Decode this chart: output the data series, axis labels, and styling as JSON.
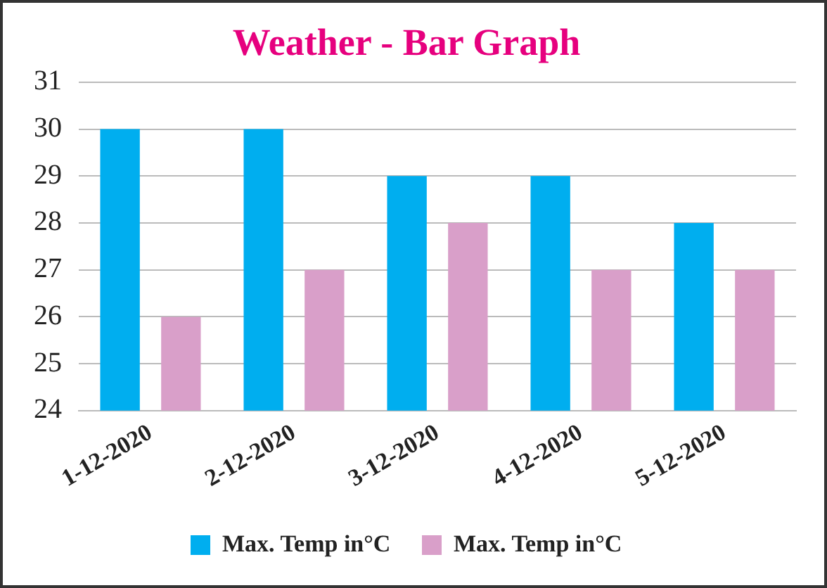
{
  "chart_data": {
    "type": "bar",
    "title": "Weather - Bar Graph",
    "categories": [
      "1-12-2020",
      "2-12-2020",
      "3-12-2020",
      "4-12-2020",
      "5-12-2020"
    ],
    "series": [
      {
        "name": "Max. Temp in°C",
        "color": "#00aeef",
        "values": [
          30,
          30,
          29,
          29,
          28
        ]
      },
      {
        "name": "Max. Temp in°C",
        "color": "#d99fc9",
        "values": [
          26,
          27,
          28,
          27,
          27
        ]
      }
    ],
    "ylim": [
      24,
      31
    ],
    "yticks": [
      24,
      25,
      26,
      27,
      28,
      29,
      30,
      31
    ],
    "grid": "y",
    "legend": "bottom"
  }
}
